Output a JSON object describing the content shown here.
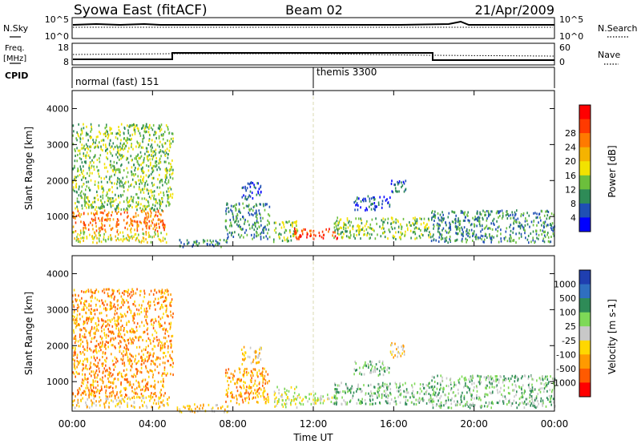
{
  "header": {
    "station": "Syowa East (fitACF)",
    "beam": "Beam 02",
    "date": "21/Apr/2009"
  },
  "side_labels": {
    "nsky": "N.Sky",
    "nsearch": "N.Search",
    "freq_line1": "Freq.",
    "freq_line2": "[MHz]",
    "nave": "Nave",
    "cpid": "CPID"
  },
  "noise_panel": {
    "left_ticks": [
      "10^5",
      "10^0"
    ],
    "right_ticks": [
      "10^5",
      "10^0"
    ]
  },
  "freq_panel": {
    "left_ticks": [
      "18",
      "8"
    ],
    "right_ticks": [
      "60",
      "0"
    ]
  },
  "cpid_panel": {
    "segments": [
      {
        "label": "normal (fast) 151",
        "start_hour": 0
      },
      {
        "label": "themis 3300",
        "start_hour": 12
      }
    ]
  },
  "colors": {
    "power_scale": [
      "#0000ff",
      "#1f4fb4",
      "#2e8b57",
      "#6cbf3c",
      "#f2e200",
      "#f5b300",
      "#ff7a00",
      "#ff3a00",
      "#ff0000"
    ],
    "velocity_scale": [
      "#1f3fb0",
      "#2f6fc0",
      "#2e8b57",
      "#7ed957",
      "#c8c8c8",
      "#ffd700",
      "#ff9a00",
      "#ff5a00",
      "#ff0000"
    ],
    "ground_scatter": "#a0a0a0"
  },
  "chart_data": [
    {
      "type": "heatmap",
      "name": "power",
      "xlabel": "",
      "ylabel": "Slant Range [km]",
      "x_unit": "hours UT",
      "xlim": [
        0,
        24
      ],
      "ylim": [
        180,
        4500
      ],
      "yticks": [
        1000,
        2000,
        3000,
        4000
      ],
      "colorbar_label": "Power [dB]",
      "colorbar_ticks": [
        "4",
        "8",
        "12",
        "16",
        "20",
        "24",
        "28"
      ],
      "patches": [
        {
          "x": [
            0,
            4.6
          ],
          "y": [
            600,
            1200
          ],
          "level": 6
        },
        {
          "x": [
            0,
            4.8
          ],
          "y": [
            300,
            600
          ],
          "level": 4
        },
        {
          "x": [
            0,
            5
          ],
          "y": [
            1200,
            3600
          ],
          "level": 3
        },
        {
          "x": [
            5.2,
            7.8
          ],
          "y": [
            180,
            400
          ],
          "level": 2
        },
        {
          "x": [
            7.6,
            9.8
          ],
          "y": [
            400,
            1400
          ],
          "level": 2
        },
        {
          "x": [
            8.4,
            9.4
          ],
          "y": [
            1500,
            2000
          ],
          "level": 1
        },
        {
          "x": [
            10,
            11.2
          ],
          "y": [
            300,
            900
          ],
          "level": 3
        },
        {
          "x": [
            11,
            13.2
          ],
          "y": [
            400,
            700
          ],
          "level": 7
        },
        {
          "x": [
            13,
            17.8
          ],
          "y": [
            400,
            1000
          ],
          "level": 3
        },
        {
          "x": [
            14,
            15.8
          ],
          "y": [
            1200,
            1600
          ],
          "level": 1
        },
        {
          "x": [
            15.8,
            16.6
          ],
          "y": [
            1700,
            2100
          ],
          "level": 1
        },
        {
          "x": [
            17.8,
            24
          ],
          "y": [
            300,
            1200
          ],
          "level": 2
        }
      ]
    },
    {
      "type": "heatmap",
      "name": "velocity",
      "xlabel": "Time UT",
      "ylabel": "Slant Range [km]",
      "x_unit": "hours UT",
      "xlim": [
        0,
        24
      ],
      "ylim": [
        180,
        4500
      ],
      "xticks": [
        "00:00",
        "04:00",
        "08:00",
        "12:00",
        "16:00",
        "20:00",
        "00:00"
      ],
      "yticks": [
        1000,
        2000,
        3000,
        4000
      ],
      "colorbar_label": "Velocity [m s-1]",
      "colorbar_ticks": [
        "1000",
        "500",
        "100",
        "25",
        "-25",
        "-100",
        "-500",
        "-1000"
      ],
      "patches": [
        {
          "x": [
            0,
            4.6
          ],
          "y": [
            600,
            1200
          ],
          "level": 6
        },
        {
          "x": [
            0,
            4.8
          ],
          "y": [
            300,
            600
          ],
          "level": 5
        },
        {
          "x": [
            0,
            5
          ],
          "y": [
            1200,
            3600
          ],
          "level": 6
        },
        {
          "x": [
            5.2,
            7.8
          ],
          "y": [
            180,
            400
          ],
          "level": 5
        },
        {
          "x": [
            7.6,
            9.8
          ],
          "y": [
            400,
            1400
          ],
          "level": 6
        },
        {
          "x": [
            8.4,
            9.4
          ],
          "y": [
            1500,
            2000
          ],
          "level": 5
        },
        {
          "x": [
            10,
            11.2
          ],
          "y": [
            300,
            900
          ],
          "level": 4
        },
        {
          "x": [
            11,
            13.2
          ],
          "y": [
            400,
            700
          ],
          "level": 4
        },
        {
          "x": [
            13,
            17.8
          ],
          "y": [
            400,
            1000
          ],
          "level": 3
        },
        {
          "x": [
            14,
            15.8
          ],
          "y": [
            1200,
            1600
          ],
          "level": 3
        },
        {
          "x": [
            15.8,
            16.6
          ],
          "y": [
            1700,
            2100
          ],
          "level": 5
        },
        {
          "x": [
            17.8,
            24
          ],
          "y": [
            300,
            1200
          ],
          "level": 3
        }
      ]
    }
  ]
}
